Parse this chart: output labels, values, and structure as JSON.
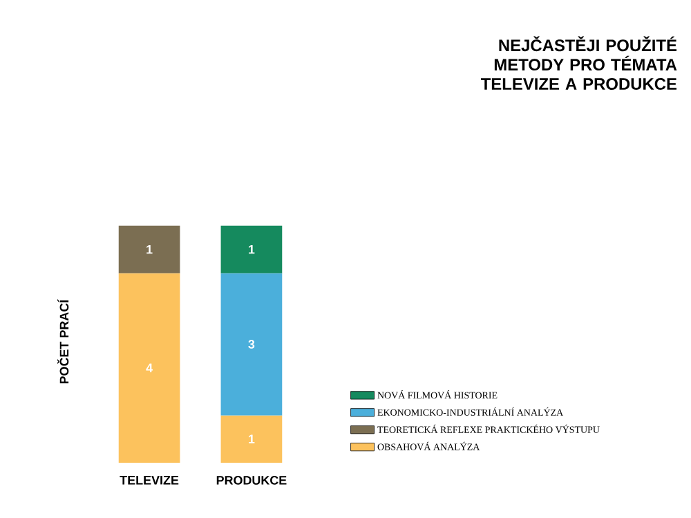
{
  "chart_data": {
    "type": "bar",
    "stacked": true,
    "title": "NEJČASTĚJI POUŽITÉ METODY PRO TÉMATA TELEVIZE A PRODUKCE",
    "ylabel": "POČET PRACÍ",
    "categories": [
      "TELEVIZE",
      "PRODUKCE"
    ],
    "data_labels": true,
    "legend": "bottom right",
    "series": [
      {
        "name": "OBSAHOVÁ ANALÝZA",
        "color": "#fcc25d",
        "values": [
          4,
          1
        ]
      },
      {
        "name": "TEORETICKÁ REFLEXE PRAKTICKÉHO VÝSTUPU",
        "color": "#7b6e52",
        "values": [
          1,
          null
        ]
      },
      {
        "name": "EKONOMICKO-INDUSTRIÁLNÍ ANALÝZA",
        "color": "#4bafdb",
        "values": [
          null,
          3
        ]
      },
      {
        "name": "NOVÁ FILMOVÁ HISTORIE",
        "color": "#158a5e",
        "values": [
          null,
          1
        ]
      }
    ]
  }
}
